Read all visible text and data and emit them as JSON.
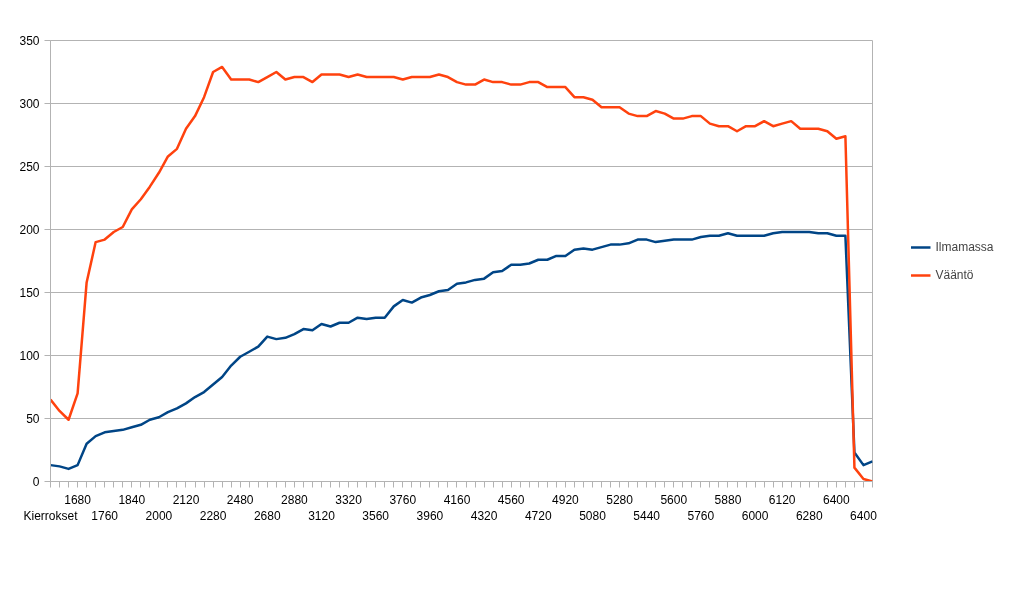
{
  "chart_data": {
    "type": "line",
    "categories": [
      "Kierrokset",
      null,
      null,
      "1680",
      null,
      null,
      "1760",
      null,
      null,
      "1840",
      null,
      null,
      "2000",
      null,
      null,
      "2120",
      null,
      null,
      "2280",
      null,
      null,
      "2480",
      null,
      null,
      "2680",
      null,
      null,
      "2880",
      null,
      null,
      "3120",
      null,
      null,
      "3320",
      null,
      null,
      "3560",
      null,
      null,
      "3760",
      null,
      null,
      "3960",
      null,
      null,
      "4160",
      null,
      null,
      "4320",
      null,
      null,
      "4560",
      null,
      null,
      "4720",
      null,
      null,
      "4920",
      null,
      null,
      "5080",
      null,
      null,
      "5280",
      null,
      null,
      "5440",
      null,
      null,
      "5600",
      null,
      null,
      "5760",
      null,
      null,
      "5880",
      null,
      null,
      "6000",
      null,
      null,
      "6120",
      null,
      null,
      "6280",
      null,
      null,
      "6400",
      null,
      null,
      "6400",
      null
    ],
    "series": [
      {
        "name": "Ilmamassa",
        "color": "#004586",
        "values": [
          13,
          12,
          10,
          13,
          30,
          36,
          39,
          40,
          41,
          43,
          45,
          49,
          51,
          55,
          58,
          62,
          67,
          71,
          77,
          83,
          92,
          99,
          103,
          107,
          115,
          113,
          114,
          117,
          121,
          120,
          125,
          123,
          126,
          126,
          130,
          129,
          130,
          130,
          139,
          144,
          142,
          146,
          148,
          151,
          152,
          157,
          158,
          160,
          161,
          166,
          167,
          172,
          172,
          173,
          176,
          176,
          179,
          179,
          184,
          185,
          184,
          186,
          188,
          188,
          189,
          192,
          192,
          190,
          191,
          192,
          192,
          192,
          194,
          195,
          195,
          197,
          195,
          195,
          195,
          195,
          197,
          198,
          198,
          198,
          198,
          197,
          197,
          195,
          195,
          23,
          13,
          16
        ]
      },
      {
        "name": "Vääntö",
        "color": "#ff420e",
        "values": [
          65,
          56,
          49,
          70,
          158,
          190,
          192,
          198,
          202,
          216,
          224,
          234,
          245,
          258,
          264,
          280,
          290,
          305,
          325,
          329,
          319,
          319,
          319,
          317,
          321,
          325,
          319,
          321,
          321,
          317,
          323,
          323,
          323,
          321,
          323,
          321,
          321,
          321,
          321,
          319,
          321,
          321,
          321,
          323,
          321,
          317,
          315,
          315,
          319,
          317,
          317,
          315,
          315,
          317,
          317,
          313,
          313,
          313,
          305,
          305,
          303,
          297,
          297,
          297,
          292,
          290,
          290,
          294,
          292,
          288,
          288,
          290,
          290,
          284,
          282,
          282,
          278,
          282,
          282,
          286,
          282,
          284,
          286,
          280,
          280,
          280,
          278,
          272,
          274,
          11,
          2,
          0
        ]
      }
    ],
    "ylim": [
      0,
      350
    ],
    "yticks": [
      0,
      50,
      100,
      150,
      200,
      250,
      300,
      350
    ],
    "grid": "y",
    "legend": "right",
    "marker": "none",
    "line_style": "solid"
  }
}
